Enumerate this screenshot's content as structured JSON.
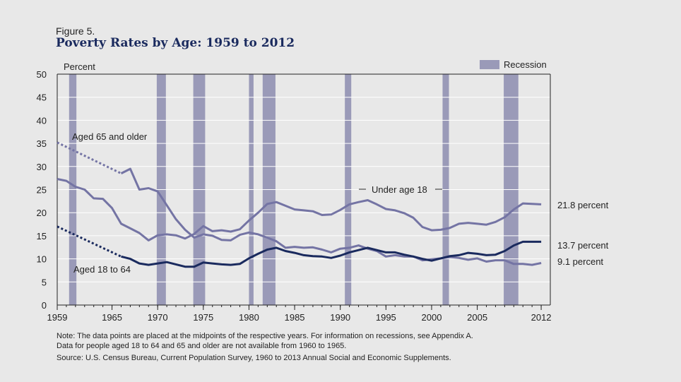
{
  "figure_label": "Figure 5.",
  "notes": [
    "Note: The data points are placed at the midpoints of the respective years. For information on recessions, see Appendix A.",
    "Data for people aged 18 to 64 and 65 and older are not available from 1960 to 1965."
  ],
  "source": "Source: U.S. Census Bureau, Current Population Survey, 1960 to 2013 Annual Social and Economic Supplements.",
  "chart_data": {
    "type": "line",
    "title": "Poverty Rates by Age: 1959 to 2012",
    "ylabel": "Percent",
    "xlabel": "",
    "xlim": [
      1959,
      2013
    ],
    "ylim": [
      0,
      50
    ],
    "yticks": [
      0,
      5,
      10,
      15,
      20,
      25,
      30,
      35,
      40,
      45,
      50
    ],
    "xticks": [
      1959,
      1965,
      1970,
      1975,
      1980,
      1985,
      1990,
      1995,
      2000,
      2005,
      2012
    ],
    "grid": true,
    "legend": {
      "label": "Recession",
      "position": "top-right"
    },
    "recessions": [
      [
        1960.3,
        1961.1
      ],
      [
        1969.9,
        1970.9
      ],
      [
        1973.9,
        1975.2
      ],
      [
        1980.0,
        1980.5
      ],
      [
        1981.5,
        1982.9
      ],
      [
        1990.5,
        1991.2
      ],
      [
        2001.2,
        2001.9
      ],
      [
        2007.9,
        2009.5
      ]
    ],
    "series": [
      {
        "name": "Under age 18",
        "annotation": "21.8 percent",
        "color": "#7474a4",
        "points": [
          [
            1959,
            27.3
          ],
          [
            1960,
            26.9
          ],
          [
            1961,
            25.6
          ],
          [
            1962,
            25.0
          ],
          [
            1963,
            23.1
          ],
          [
            1964,
            23.0
          ],
          [
            1965,
            21.0
          ],
          [
            1966,
            17.6
          ],
          [
            1967,
            16.6
          ],
          [
            1968,
            15.6
          ],
          [
            1969,
            14.0
          ],
          [
            1970,
            15.1
          ],
          [
            1971,
            15.3
          ],
          [
            1972,
            15.1
          ],
          [
            1973,
            14.4
          ],
          [
            1974,
            15.4
          ],
          [
            1975,
            17.1
          ],
          [
            1976,
            16.0
          ],
          [
            1977,
            16.2
          ],
          [
            1978,
            15.9
          ],
          [
            1979,
            16.4
          ],
          [
            1980,
            18.3
          ],
          [
            1981,
            20.0
          ],
          [
            1982,
            21.9
          ],
          [
            1983,
            22.3
          ],
          [
            1984,
            21.5
          ],
          [
            1985,
            20.7
          ],
          [
            1986,
            20.5
          ],
          [
            1987,
            20.3
          ],
          [
            1988,
            19.5
          ],
          [
            1989,
            19.6
          ],
          [
            1990,
            20.6
          ],
          [
            1991,
            21.8
          ],
          [
            1992,
            22.3
          ],
          [
            1993,
            22.7
          ],
          [
            1994,
            21.8
          ],
          [
            1995,
            20.8
          ],
          [
            1996,
            20.5
          ],
          [
            1997,
            19.9
          ],
          [
            1998,
            18.9
          ],
          [
            1999,
            16.9
          ],
          [
            2000,
            16.2
          ],
          [
            2001,
            16.3
          ],
          [
            2002,
            16.7
          ],
          [
            2003,
            17.6
          ],
          [
            2004,
            17.8
          ],
          [
            2005,
            17.6
          ],
          [
            2006,
            17.4
          ],
          [
            2007,
            18.0
          ],
          [
            2008,
            19.0
          ],
          [
            2009,
            20.7
          ],
          [
            2010,
            22.0
          ],
          [
            2011,
            21.9
          ],
          [
            2012,
            21.8
          ]
        ]
      },
      {
        "name": "Aged 65 and older",
        "annotation": "9.1 percent",
        "color": "#7474a4",
        "estimated": [
          [
            1959,
            35.2
          ],
          [
            1966,
            28.5
          ]
        ],
        "points": [
          [
            1966,
            28.5
          ],
          [
            1967,
            29.5
          ],
          [
            1968,
            25.0
          ],
          [
            1969,
            25.3
          ],
          [
            1970,
            24.6
          ],
          [
            1971,
            21.6
          ],
          [
            1972,
            18.6
          ],
          [
            1973,
            16.3
          ],
          [
            1974,
            14.6
          ],
          [
            1975,
            15.3
          ],
          [
            1976,
            15.0
          ],
          [
            1977,
            14.1
          ],
          [
            1978,
            14.0
          ],
          [
            1979,
            15.2
          ],
          [
            1980,
            15.7
          ],
          [
            1981,
            15.3
          ],
          [
            1982,
            14.6
          ],
          [
            1983,
            13.8
          ],
          [
            1984,
            12.4
          ],
          [
            1985,
            12.6
          ],
          [
            1986,
            12.4
          ],
          [
            1987,
            12.5
          ],
          [
            1988,
            12.0
          ],
          [
            1989,
            11.4
          ],
          [
            1990,
            12.2
          ],
          [
            1991,
            12.4
          ],
          [
            1992,
            12.9
          ],
          [
            1993,
            12.2
          ],
          [
            1994,
            11.7
          ],
          [
            1995,
            10.5
          ],
          [
            1996,
            10.8
          ],
          [
            1997,
            10.5
          ],
          [
            1998,
            10.5
          ],
          [
            1999,
            9.7
          ],
          [
            2000,
            9.9
          ],
          [
            2001,
            10.1
          ],
          [
            2002,
            10.4
          ],
          [
            2003,
            10.2
          ],
          [
            2004,
            9.8
          ],
          [
            2005,
            10.1
          ],
          [
            2006,
            9.4
          ],
          [
            2007,
            9.7
          ],
          [
            2008,
            9.7
          ],
          [
            2009,
            8.9
          ],
          [
            2010,
            8.9
          ],
          [
            2011,
            8.7
          ],
          [
            2012,
            9.1
          ]
        ]
      },
      {
        "name": "Aged 18 to 64",
        "annotation": "13.7 percent",
        "color": "#1a2a5e",
        "estimated": [
          [
            1959,
            17.0
          ],
          [
            1966,
            10.5
          ]
        ],
        "points": [
          [
            1966,
            10.5
          ],
          [
            1967,
            10.0
          ],
          [
            1968,
            9.0
          ],
          [
            1969,
            8.7
          ],
          [
            1970,
            9.0
          ],
          [
            1971,
            9.3
          ],
          [
            1972,
            8.8
          ],
          [
            1973,
            8.3
          ],
          [
            1974,
            8.3
          ],
          [
            1975,
            9.2
          ],
          [
            1976,
            9.0
          ],
          [
            1977,
            8.8
          ],
          [
            1978,
            8.7
          ],
          [
            1979,
            8.9
          ],
          [
            1980,
            10.1
          ],
          [
            1981,
            11.1
          ],
          [
            1982,
            12.0
          ],
          [
            1983,
            12.4
          ],
          [
            1984,
            11.7
          ],
          [
            1985,
            11.3
          ],
          [
            1986,
            10.8
          ],
          [
            1987,
            10.6
          ],
          [
            1988,
            10.5
          ],
          [
            1989,
            10.2
          ],
          [
            1990,
            10.7
          ],
          [
            1991,
            11.4
          ],
          [
            1992,
            11.9
          ],
          [
            1993,
            12.4
          ],
          [
            1994,
            11.9
          ],
          [
            1995,
            11.4
          ],
          [
            1996,
            11.4
          ],
          [
            1997,
            10.9
          ],
          [
            1998,
            10.5
          ],
          [
            1999,
            10.0
          ],
          [
            2000,
            9.6
          ],
          [
            2001,
            10.1
          ],
          [
            2002,
            10.6
          ],
          [
            2003,
            10.8
          ],
          [
            2004,
            11.3
          ],
          [
            2005,
            11.1
          ],
          [
            2006,
            10.8
          ],
          [
            2007,
            10.9
          ],
          [
            2008,
            11.7
          ],
          [
            2009,
            12.9
          ],
          [
            2010,
            13.7
          ],
          [
            2011,
            13.7
          ],
          [
            2012,
            13.7
          ]
        ]
      }
    ]
  }
}
